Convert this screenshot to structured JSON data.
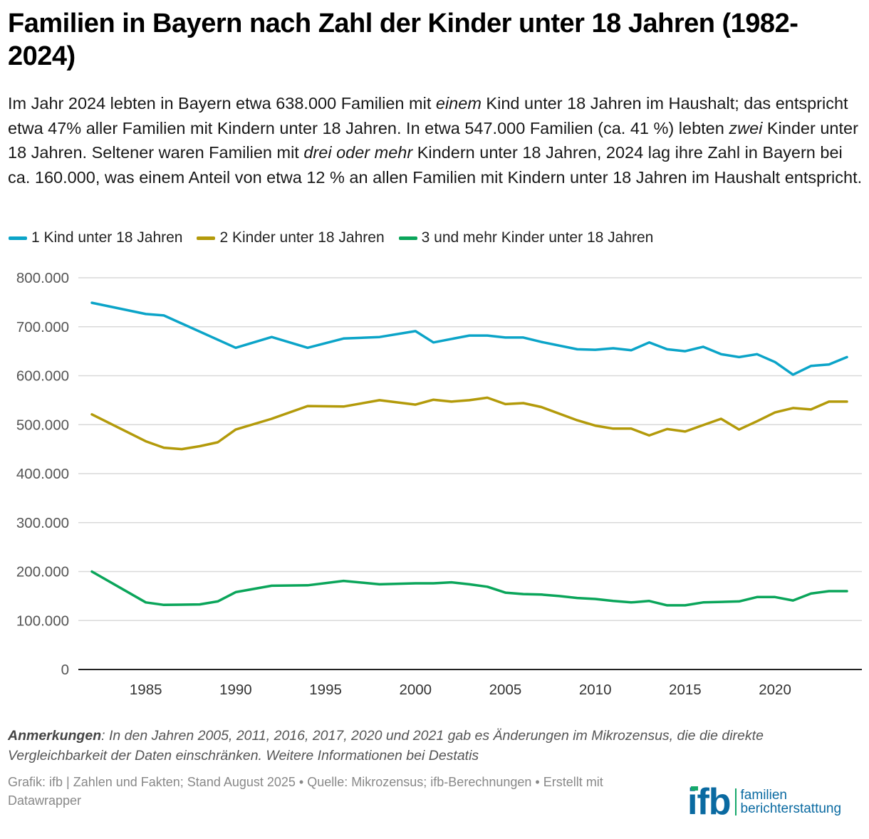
{
  "header": {
    "title": "Familien in Bayern nach Zahl der Kinder unter 18 Jahren (1982-2024)",
    "description_parts": [
      {
        "text": "Im Jahr 2024 lebten in Bayern etwa 638.000 Familien mit ",
        "italic": false
      },
      {
        "text": "einem",
        "italic": true
      },
      {
        "text": " Kind unter 18 Jahren im Haushalt; das entspricht etwa 47% aller Familien mit Kindern unter 18 Jahren. In etwa 547.000 Familien (ca. 41 %) lebten ",
        "italic": false
      },
      {
        "text": "zwei",
        "italic": true
      },
      {
        "text": " Kinder unter 18 Jahren. Seltener waren Familien mit ",
        "italic": false
      },
      {
        "text": "drei oder mehr",
        "italic": true
      },
      {
        "text": " Kindern unter 18 Jahren, 2024 lag ihre Zahl in Bayern bei ca. 160.000, was einem Anteil von etwa 12 % an allen Familien mit Kindern unter 18 Jahren im Haushalt entspricht.",
        "italic": false
      }
    ]
  },
  "chart_data": {
    "type": "line",
    "title": "Familien in Bayern nach Zahl der Kinder unter 18 Jahren (1982-2024)",
    "xlabel": "",
    "ylabel": "",
    "xlim": [
      1982,
      2024
    ],
    "ylim": [
      0,
      800000
    ],
    "grid": true,
    "legend_position": "top-left",
    "x_ticks": [
      1985,
      1990,
      1995,
      2000,
      2005,
      2010,
      2015,
      2020
    ],
    "y_ticks": [
      0,
      100000,
      200000,
      300000,
      400000,
      500000,
      600000,
      700000,
      800000
    ],
    "y_tick_labels": [
      "0",
      "100.000",
      "200.000",
      "300.000",
      "400.000",
      "500.000",
      "600.000",
      "700.000",
      "800.000"
    ],
    "series": [
      {
        "name": "1 Kind unter 18 Jahren",
        "color": "#0ba4c8",
        "points": [
          [
            1982,
            749000
          ],
          [
            1985,
            726000
          ],
          [
            1986,
            723000
          ],
          [
            1990,
            657000
          ],
          [
            1992,
            679000
          ],
          [
            1994,
            657000
          ],
          [
            1996,
            676000
          ],
          [
            1998,
            679000
          ],
          [
            2000,
            691000
          ],
          [
            2001,
            668000
          ],
          [
            2003,
            682000
          ],
          [
            2004,
            682000
          ],
          [
            2005,
            678000
          ],
          [
            2006,
            678000
          ],
          [
            2007,
            669000
          ],
          [
            2009,
            654000
          ],
          [
            2010,
            653000
          ],
          [
            2011,
            656000
          ],
          [
            2012,
            652000
          ],
          [
            2013,
            668000
          ],
          [
            2014,
            654000
          ],
          [
            2015,
            650000
          ],
          [
            2016,
            659000
          ],
          [
            2017,
            644000
          ],
          [
            2018,
            638000
          ],
          [
            2019,
            644000
          ],
          [
            2020,
            628000
          ],
          [
            2021,
            602000
          ],
          [
            2022,
            620000
          ],
          [
            2023,
            623000
          ],
          [
            2024,
            638000
          ]
        ]
      },
      {
        "name": "2 Kinder unter 18 Jahren",
        "color": "#b39a0a",
        "points": [
          [
            1982,
            521000
          ],
          [
            1985,
            466000
          ],
          [
            1986,
            453000
          ],
          [
            1987,
            450000
          ],
          [
            1988,
            456000
          ],
          [
            1989,
            464000
          ],
          [
            1990,
            490000
          ],
          [
            1992,
            512000
          ],
          [
            1994,
            538000
          ],
          [
            1996,
            537000
          ],
          [
            1998,
            550000
          ],
          [
            2000,
            541000
          ],
          [
            2001,
            551000
          ],
          [
            2002,
            547000
          ],
          [
            2003,
            550000
          ],
          [
            2004,
            555000
          ],
          [
            2005,
            542000
          ],
          [
            2006,
            544000
          ],
          [
            2007,
            536000
          ],
          [
            2009,
            509000
          ],
          [
            2010,
            498000
          ],
          [
            2011,
            492000
          ],
          [
            2012,
            492000
          ],
          [
            2013,
            478000
          ],
          [
            2014,
            491000
          ],
          [
            2015,
            486000
          ],
          [
            2016,
            499000
          ],
          [
            2017,
            512000
          ],
          [
            2018,
            490000
          ],
          [
            2019,
            507000
          ],
          [
            2020,
            525000
          ],
          [
            2021,
            534000
          ],
          [
            2022,
            531000
          ],
          [
            2023,
            547000
          ],
          [
            2024,
            547000
          ]
        ]
      },
      {
        "name": "3 und mehr Kinder unter 18 Jahren",
        "color": "#0aa55a",
        "points": [
          [
            1982,
            200000
          ],
          [
            1985,
            137000
          ],
          [
            1986,
            132000
          ],
          [
            1988,
            133000
          ],
          [
            1989,
            139000
          ],
          [
            1990,
            158000
          ],
          [
            1992,
            171000
          ],
          [
            1994,
            172000
          ],
          [
            1996,
            181000
          ],
          [
            1998,
            174000
          ],
          [
            2000,
            176000
          ],
          [
            2001,
            176000
          ],
          [
            2002,
            178000
          ],
          [
            2003,
            174000
          ],
          [
            2004,
            169000
          ],
          [
            2005,
            157000
          ],
          [
            2006,
            154000
          ],
          [
            2007,
            153000
          ],
          [
            2008,
            150000
          ],
          [
            2009,
            146000
          ],
          [
            2010,
            144000
          ],
          [
            2011,
            140000
          ],
          [
            2012,
            137000
          ],
          [
            2013,
            140000
          ],
          [
            2014,
            131000
          ],
          [
            2015,
            131000
          ],
          [
            2016,
            137000
          ],
          [
            2017,
            138000
          ],
          [
            2018,
            139000
          ],
          [
            2019,
            148000
          ],
          [
            2020,
            148000
          ],
          [
            2021,
            141000
          ],
          [
            2022,
            155000
          ],
          [
            2023,
            160000
          ],
          [
            2024,
            160000
          ]
        ]
      }
    ]
  },
  "footer": {
    "notes_label": "Anmerkungen",
    "notes_text": ": In den Jahren 2005, 2011, 2016, 2017, 2020 und 2021 gab es Änderungen im Mikrozensus, die die direkte Vergleichbarkeit der Daten einschränken. Weitere Informationen bei Destatis",
    "source_line": "Grafik: ifb | Zahlen und Fakten; Stand August 2025  • Quelle: Mikrozensus; ifb-Berechnungen • Erstellt mit Datawrapper",
    "logo": {
      "mark": "ifb",
      "line1": "familien",
      "line2": "berichterstattung"
    }
  }
}
